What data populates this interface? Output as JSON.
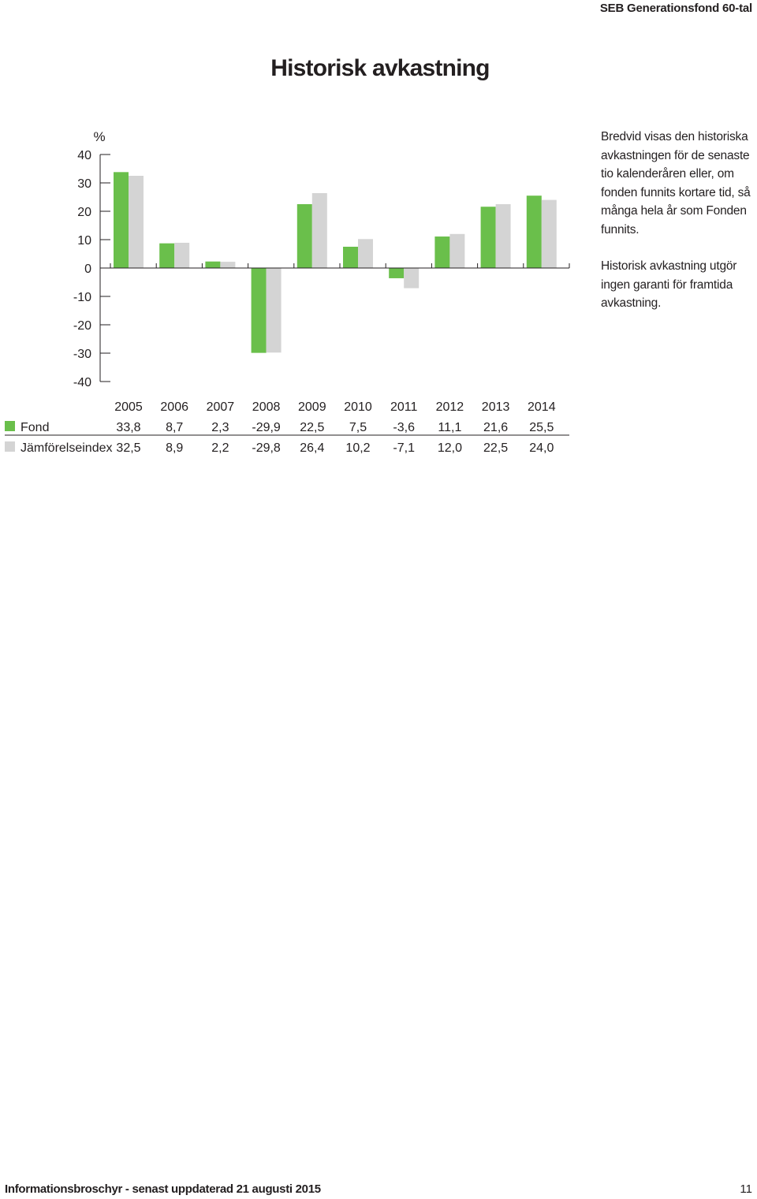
{
  "header": {
    "fund_name": "SEB Generationsfond 60-tal"
  },
  "title": "Historisk avkastning",
  "side_text": {
    "paragraph1": "Bredvid visas den historiska avkastningen för de senaste tio kalenderåren eller, om fonden funnits kortare tid, så många hela år som Fonden funnits.",
    "paragraph2": "Historisk avkastning utgör ingen garanti för framtida avkastning."
  },
  "chart_data": {
    "type": "bar",
    "ylabel": "%",
    "ylim": [
      -40,
      40
    ],
    "yticks": [
      "40",
      "30",
      "20",
      "10",
      "0",
      "-10",
      "-20",
      "-30",
      "-40"
    ],
    "categories": [
      "2005",
      "2006",
      "2007",
      "2008",
      "2009",
      "2010",
      "2011",
      "2012",
      "2013",
      "2014"
    ],
    "series": [
      {
        "name": "Fond",
        "color": "#6abf4b",
        "values": [
          33.8,
          8.7,
          2.3,
          -29.9,
          22.5,
          7.5,
          -3.6,
          11.1,
          21.6,
          25.5
        ],
        "labels": [
          "33,8",
          "8,7",
          "2,3",
          "-29,9",
          "22,5",
          "7,5",
          "-3,6",
          "11,1",
          "21,6",
          "25,5"
        ]
      },
      {
        "name": "Jämförelseindex",
        "color": "#d4d4d4",
        "values": [
          32.5,
          8.9,
          2.2,
          -29.8,
          26.4,
          10.2,
          -7.1,
          12.0,
          22.5,
          24.0
        ],
        "labels": [
          "32,5",
          "8,9",
          "2,2",
          "-29,8",
          "26,4",
          "10,2",
          "-7,1",
          "12,0",
          "22,5",
          "24,0"
        ]
      }
    ],
    "grid": false,
    "legend": "table-below"
  },
  "footer": {
    "left": "Informationsbroschyr - senast uppdaterad 21 augusti 2015",
    "page_number": "11"
  }
}
